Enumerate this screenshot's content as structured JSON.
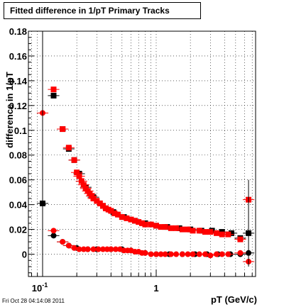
{
  "chart_data": {
    "type": "scatter",
    "title": "Fitted difference in 1/pT  Primary Tracks",
    "xlabel": "pT (GeV/c)",
    "ylabel": "difference in 1/pT",
    "x_scale": "log",
    "xlim": [
      0.075,
      7.5
    ],
    "ylim": [
      -0.018,
      0.18
    ],
    "grid": true,
    "x_tick_labels": [
      {
        "value": 0.1,
        "base": "10",
        "exp": "-1"
      },
      {
        "value": 1,
        "base": "1",
        "exp": ""
      }
    ],
    "y_ticks": [
      0,
      0.02,
      0.04,
      0.06,
      0.08,
      0.1,
      0.12,
      0.14,
      0.16,
      0.18
    ],
    "y_tick_labels": [
      "0",
      "0.02",
      "0.04",
      "0.06",
      "0.08",
      "0.1",
      "0.12",
      "0.14",
      "0.16",
      "0.18"
    ],
    "series": [
      {
        "marker": "square",
        "color": "#000000",
        "x": [
          0.1,
          0.125,
          0.15,
          0.17,
          0.19,
          0.21,
          0.24,
          0.28,
          0.34,
          0.42,
          0.52,
          0.65,
          0.8,
          1.0,
          1.25,
          1.6,
          2.0,
          2.5,
          3.1,
          3.8,
          4.6,
          5.5,
          6.5
        ],
        "y": [
          0.041,
          0.128,
          0.101,
          0.085,
          0.076,
          0.065,
          0.054,
          0.046,
          0.039,
          0.034,
          0.03,
          0.027,
          0.025,
          0.023,
          0.022,
          0.021,
          0.02,
          0.019,
          0.019,
          0.018,
          0.017,
          0.013,
          0.017
        ]
      },
      {
        "marker": "circle",
        "color": "#000000",
        "x": [
          0.125,
          0.15,
          0.17,
          0.2,
          0.25,
          0.3,
          0.4,
          0.5,
          0.6,
          0.8,
          1.0,
          1.3,
          1.7,
          2.2,
          2.8,
          3.5,
          4.5,
          5.5,
          6.5
        ],
        "y": [
          0.015,
          0.01,
          0.007,
          0.005,
          0.004,
          0.004,
          0.004,
          0.004,
          0.003,
          0.001,
          0.0,
          0.0,
          0.0,
          0.0,
          0.0,
          0.0,
          0.0,
          0.0,
          0.001
        ]
      },
      {
        "marker": "square",
        "color": "#ff0000",
        "x": [
          0.125,
          0.15,
          0.17,
          0.19,
          0.2,
          0.21,
          0.22,
          0.23,
          0.24,
          0.25,
          0.26,
          0.27,
          0.28,
          0.3,
          0.32,
          0.34,
          0.36,
          0.38,
          0.4,
          0.43,
          0.46,
          0.5,
          0.55,
          0.6,
          0.65,
          0.7,
          0.75,
          0.8,
          0.9,
          1.0,
          1.1,
          1.2,
          1.35,
          1.5,
          1.7,
          1.9,
          2.1,
          2.4,
          2.7,
          3.0,
          3.4,
          3.8,
          4.3,
          5.5,
          6.5
        ],
        "y": [
          0.133,
          0.101,
          0.086,
          0.076,
          0.066,
          0.063,
          0.059,
          0.056,
          0.053,
          0.051,
          0.049,
          0.047,
          0.045,
          0.043,
          0.041,
          0.039,
          0.037,
          0.036,
          0.035,
          0.033,
          0.032,
          0.03,
          0.029,
          0.028,
          0.027,
          0.026,
          0.025,
          0.024,
          0.024,
          0.023,
          0.022,
          0.022,
          0.021,
          0.021,
          0.02,
          0.02,
          0.019,
          0.019,
          0.018,
          0.018,
          0.017,
          0.016,
          0.016,
          0.012,
          0.044
        ]
      },
      {
        "marker": "circle",
        "color": "#ff0000",
        "x": [
          0.1,
          0.125,
          0.15,
          0.17,
          0.19,
          0.21,
          0.23,
          0.25,
          0.28,
          0.31,
          0.34,
          0.37,
          0.4,
          0.44,
          0.48,
          0.52,
          0.56,
          0.6,
          0.65,
          0.7,
          0.75,
          0.8,
          0.9,
          1.0,
          1.1,
          1.2,
          1.35,
          1.5,
          1.7,
          1.9,
          2.1,
          2.4,
          2.7,
          3.0,
          3.4,
          3.8,
          4.3,
          5.5,
          6.5
        ],
        "y": [
          0.114,
          0.019,
          0.01,
          0.007,
          0.005,
          0.004,
          0.004,
          0.004,
          0.004,
          0.004,
          0.004,
          0.004,
          0.004,
          0.004,
          0.004,
          0.003,
          0.003,
          0.003,
          0.002,
          0.002,
          0.001,
          0.001,
          0.0,
          0.0,
          0.0,
          0.0,
          0.0,
          0.0,
          0.0,
          0.0,
          0.0,
          0.0,
          0.0,
          -0.001,
          0.0,
          0.0,
          0.0,
          0.001,
          -0.006
        ]
      }
    ]
  },
  "footer": "Fri Oct 28 04:14:08 2011"
}
